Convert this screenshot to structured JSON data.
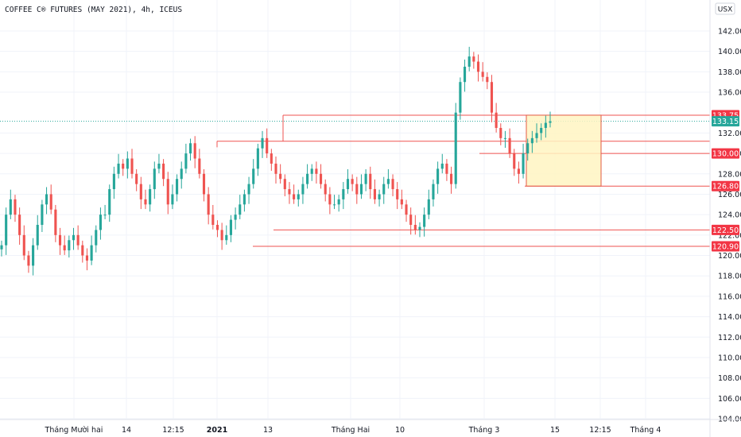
{
  "header": {
    "title": "COFFEE C® FUTURES (MAY 2021), 4h, ICEUS",
    "currency_label": "USX"
  },
  "colors": {
    "up": "#26a69a",
    "down": "#ef5350",
    "level_line": "#ef5350",
    "level_badge": "#f23645",
    "last_price_badge": "#26a69a",
    "box_fill": "#fff4c2",
    "box_stroke": "#e35b46",
    "grid": "#f0f3fa",
    "last_dotted": "#26a69a"
  },
  "chart_data": {
    "type": "candlestick",
    "title": "COFFEE C® FUTURES (MAY 2021), 4h, ICEUS",
    "ylim": [
      103.4,
      143.4
    ],
    "y_ticks": [
      "104.00",
      "106.00",
      "108.00",
      "110.00",
      "112.00",
      "114.00",
      "116.00",
      "118.00",
      "120.00",
      "122.00",
      "124.00",
      "126.00",
      "128.00",
      "130.00",
      "132.00",
      "136.00",
      "138.00",
      "140.00",
      "142.00"
    ],
    "x_ticks": [
      {
        "label": "Tháng Mười hai",
        "bold": false
      },
      {
        "label": "14",
        "bold": false
      },
      {
        "label": "12:15",
        "bold": false
      },
      {
        "label": "2021",
        "bold": true
      },
      {
        "label": "13",
        "bold": false
      },
      {
        "label": "Tháng Hai",
        "bold": false
      },
      {
        "label": "10",
        "bold": false
      },
      {
        "label": "Tháng 3",
        "bold": false
      },
      {
        "label": "15",
        "bold": false
      },
      {
        "label": "12:15",
        "bold": false
      },
      {
        "label": "Tháng 4",
        "bold": false
      }
    ],
    "price_levels": [
      {
        "value": 133.75,
        "label": "133.75"
      },
      {
        "value": 130.0,
        "label": "130.00"
      },
      {
        "value": 126.8,
        "label": "126.80"
      },
      {
        "value": 122.5,
        "label": "122.50"
      },
      {
        "value": 120.9,
        "label": "120.90"
      }
    ],
    "horizontal_lines": [
      131.2
    ],
    "last_price": {
      "value": 133.15,
      "label": "133.15"
    },
    "highlight_box": {
      "from": 126.8,
      "to": 133.75
    },
    "closes": [
      121,
      124,
      125.5,
      124,
      122,
      120,
      119,
      121,
      123,
      125,
      126,
      124.5,
      122,
      121,
      120.5,
      121.5,
      122,
      121,
      120,
      119.5,
      121,
      122.5,
      124,
      124,
      126.5,
      128,
      129,
      128.5,
      129.5,
      128,
      127,
      125.5,
      125,
      126.5,
      128.5,
      129,
      127.5,
      125,
      126,
      127.5,
      128.5,
      130,
      131,
      129.5,
      128,
      126,
      124,
      123,
      122.5,
      121.5,
      122,
      123.5,
      124,
      125,
      126,
      127,
      128.5,
      130.5,
      131.5,
      130,
      129,
      128,
      127.5,
      126.5,
      126,
      125.5,
      126,
      127,
      128,
      128.5,
      128,
      127,
      126,
      125,
      125,
      125.5,
      126.5,
      127.5,
      127,
      126,
      127,
      128,
      126.5,
      125.5,
      126,
      127,
      127.5,
      126.5,
      125.5,
      125,
      124,
      123,
      122.5,
      122.8,
      124,
      125.5,
      127,
      128.5,
      129,
      128,
      127,
      134,
      137,
      138.5,
      139.5,
      139,
      138,
      137.5,
      137,
      134,
      132.5,
      131.5,
      131.5,
      130,
      128.5,
      128,
      130,
      131,
      131.5,
      132,
      132.5,
      133,
      133.15
    ]
  }
}
